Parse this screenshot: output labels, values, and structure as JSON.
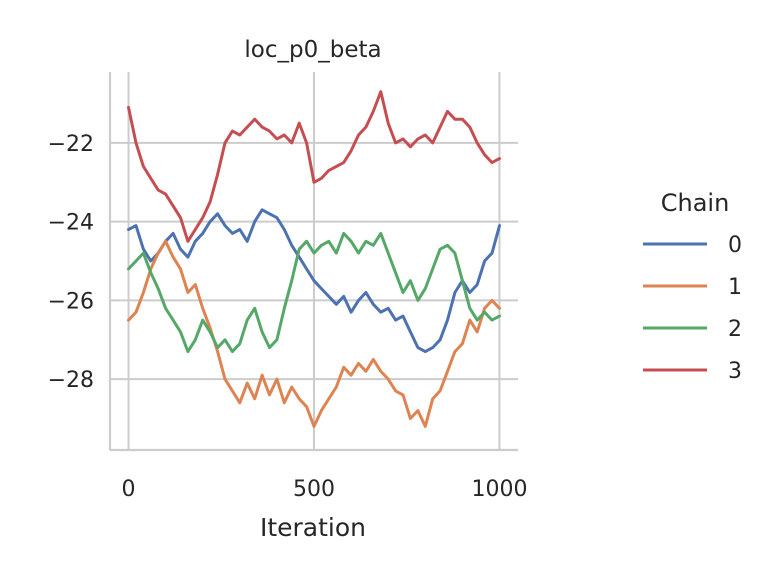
{
  "chart_data": {
    "type": "line",
    "title": "loc_p0_beta",
    "xlabel": "Iteration",
    "ylabel": "",
    "xlim": [
      -50,
      1050
    ],
    "ylim": [
      -29.8,
      -20.2
    ],
    "xticks": [
      0,
      500,
      1000
    ],
    "yticks": [
      -22,
      -24,
      -26,
      -28
    ],
    "xtick_labels": [
      "0",
      "500",
      "1000"
    ],
    "ytick_labels": [
      "−22",
      "−24",
      "−26",
      "−28"
    ],
    "grid": true,
    "legend": {
      "title": "Chain",
      "placement": "right"
    },
    "series": [
      {
        "name": "0",
        "color": "#4c72b0",
        "x": [
          0,
          20,
          40,
          60,
          80,
          100,
          120,
          140,
          160,
          180,
          200,
          220,
          240,
          260,
          280,
          300,
          320,
          340,
          360,
          380,
          400,
          420,
          440,
          460,
          480,
          500,
          520,
          540,
          560,
          580,
          600,
          620,
          640,
          660,
          680,
          700,
          720,
          740,
          760,
          780,
          800,
          820,
          840,
          860,
          880,
          900,
          920,
          940,
          960,
          980,
          1000
        ],
        "y": [
          -24.2,
          -24.1,
          -24.7,
          -25.0,
          -24.8,
          -24.5,
          -24.3,
          -24.7,
          -24.9,
          -24.5,
          -24.3,
          -24.0,
          -23.8,
          -24.1,
          -24.3,
          -24.2,
          -24.5,
          -24.0,
          -23.7,
          -23.8,
          -23.9,
          -24.2,
          -24.6,
          -24.9,
          -25.2,
          -25.5,
          -25.7,
          -25.9,
          -26.1,
          -25.9,
          -26.3,
          -26.0,
          -25.8,
          -26.1,
          -26.3,
          -26.2,
          -26.5,
          -26.4,
          -26.8,
          -27.2,
          -27.3,
          -27.2,
          -27.0,
          -26.5,
          -25.8,
          -25.5,
          -25.8,
          -25.6,
          -25.0,
          -24.8,
          -24.1
        ]
      },
      {
        "name": "1",
        "color": "#dd8452",
        "x": [
          0,
          20,
          40,
          60,
          80,
          100,
          120,
          140,
          160,
          180,
          200,
          220,
          240,
          260,
          280,
          300,
          320,
          340,
          360,
          380,
          400,
          420,
          440,
          460,
          480,
          500,
          520,
          540,
          560,
          580,
          600,
          620,
          640,
          660,
          680,
          700,
          720,
          740,
          760,
          780,
          800,
          820,
          840,
          860,
          880,
          900,
          920,
          940,
          960,
          980,
          1000
        ],
        "y": [
          -26.5,
          -26.3,
          -25.8,
          -25.2,
          -24.8,
          -24.5,
          -24.9,
          -25.2,
          -25.8,
          -25.6,
          -26.2,
          -26.7,
          -27.3,
          -28.0,
          -28.3,
          -28.6,
          -28.1,
          -28.5,
          -27.9,
          -28.4,
          -28.0,
          -28.6,
          -28.2,
          -28.5,
          -28.7,
          -29.2,
          -28.8,
          -28.5,
          -28.2,
          -27.7,
          -27.9,
          -27.6,
          -27.8,
          -27.5,
          -27.8,
          -28.0,
          -28.3,
          -28.4,
          -29.0,
          -28.8,
          -29.2,
          -28.5,
          -28.3,
          -27.8,
          -27.3,
          -27.1,
          -26.5,
          -26.8,
          -26.2,
          -26.0,
          -26.2
        ]
      },
      {
        "name": "2",
        "color": "#55a868",
        "x": [
          0,
          20,
          40,
          60,
          80,
          100,
          120,
          140,
          160,
          180,
          200,
          220,
          240,
          260,
          280,
          300,
          320,
          340,
          360,
          380,
          400,
          420,
          440,
          460,
          480,
          500,
          520,
          540,
          560,
          580,
          600,
          620,
          640,
          660,
          680,
          700,
          720,
          740,
          760,
          780,
          800,
          820,
          840,
          860,
          880,
          900,
          920,
          940,
          960,
          980,
          1000
        ],
        "y": [
          -25.2,
          -25.0,
          -24.8,
          -25.3,
          -25.7,
          -26.2,
          -26.5,
          -26.8,
          -27.3,
          -27.0,
          -26.5,
          -26.8,
          -27.2,
          -27.0,
          -27.3,
          -27.1,
          -26.5,
          -26.2,
          -26.8,
          -27.2,
          -27.0,
          -26.2,
          -25.5,
          -24.7,
          -24.5,
          -24.8,
          -24.6,
          -24.5,
          -24.8,
          -24.3,
          -24.5,
          -24.8,
          -24.5,
          -24.6,
          -24.3,
          -24.8,
          -25.3,
          -25.8,
          -25.5,
          -26.0,
          -25.7,
          -25.2,
          -24.7,
          -24.6,
          -24.8,
          -25.5,
          -26.2,
          -26.5,
          -26.3,
          -26.5,
          -26.4
        ]
      },
      {
        "name": "3",
        "color": "#c44e52",
        "x": [
          0,
          20,
          40,
          60,
          80,
          100,
          120,
          140,
          160,
          180,
          200,
          220,
          240,
          260,
          280,
          300,
          320,
          340,
          360,
          380,
          400,
          420,
          440,
          460,
          480,
          500,
          520,
          540,
          560,
          580,
          600,
          620,
          640,
          660,
          680,
          700,
          720,
          740,
          760,
          780,
          800,
          820,
          840,
          860,
          880,
          900,
          920,
          940,
          960,
          980,
          1000
        ],
        "y": [
          -21.1,
          -22.0,
          -22.6,
          -22.9,
          -23.2,
          -23.3,
          -23.6,
          -23.9,
          -24.5,
          -24.2,
          -23.9,
          -23.5,
          -22.8,
          -22.0,
          -21.7,
          -21.8,
          -21.6,
          -21.4,
          -21.6,
          -21.7,
          -21.9,
          -21.8,
          -22.0,
          -21.5,
          -22.0,
          -23.0,
          -22.9,
          -22.7,
          -22.6,
          -22.5,
          -22.2,
          -21.8,
          -21.6,
          -21.2,
          -20.7,
          -21.5,
          -22.0,
          -21.9,
          -22.1,
          -21.9,
          -21.8,
          -22.0,
          -21.6,
          -21.2,
          -21.4,
          -21.4,
          -21.6,
          -22.0,
          -22.3,
          -22.5,
          -22.4
        ]
      }
    ]
  }
}
